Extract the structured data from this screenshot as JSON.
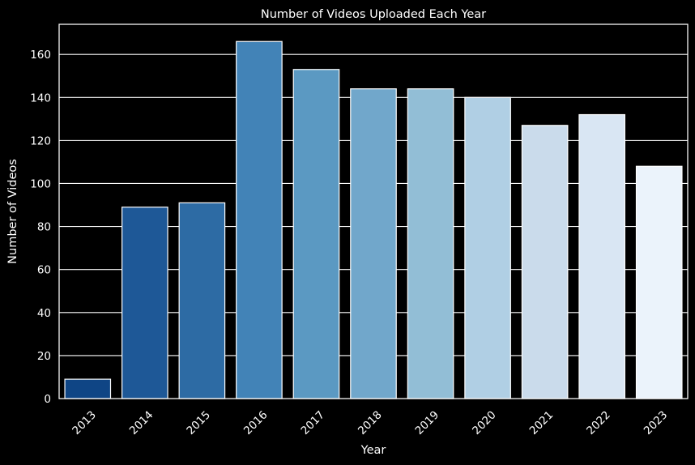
{
  "chart_data": {
    "type": "bar",
    "title": "Number of Videos Uploaded Each Year",
    "xlabel": "Year",
    "ylabel": "Number of Videos",
    "categories": [
      "2013",
      "2014",
      "2015",
      "2016",
      "2017",
      "2018",
      "2019",
      "2020",
      "2021",
      "2022",
      "2023"
    ],
    "values": [
      9,
      89,
      91,
      166,
      153,
      144,
      144,
      140,
      127,
      132,
      108
    ],
    "ylim": [
      0,
      174
    ],
    "yticks": [
      0,
      20,
      40,
      60,
      80,
      100,
      120,
      140,
      160
    ],
    "grid": true,
    "legend": "none",
    "colors": [
      "#0f4585",
      "#1e5897",
      "#2d6ba4",
      "#4283b7",
      "#5b99c2",
      "#71a7cb",
      "#92bed6",
      "#b0cfe4",
      "#cadbeb",
      "#d9e6f3",
      "#ebf3fb"
    ],
    "background_color": "#000000",
    "bar_edge_color": "#ffffff",
    "text_color": "#ffffff"
  }
}
